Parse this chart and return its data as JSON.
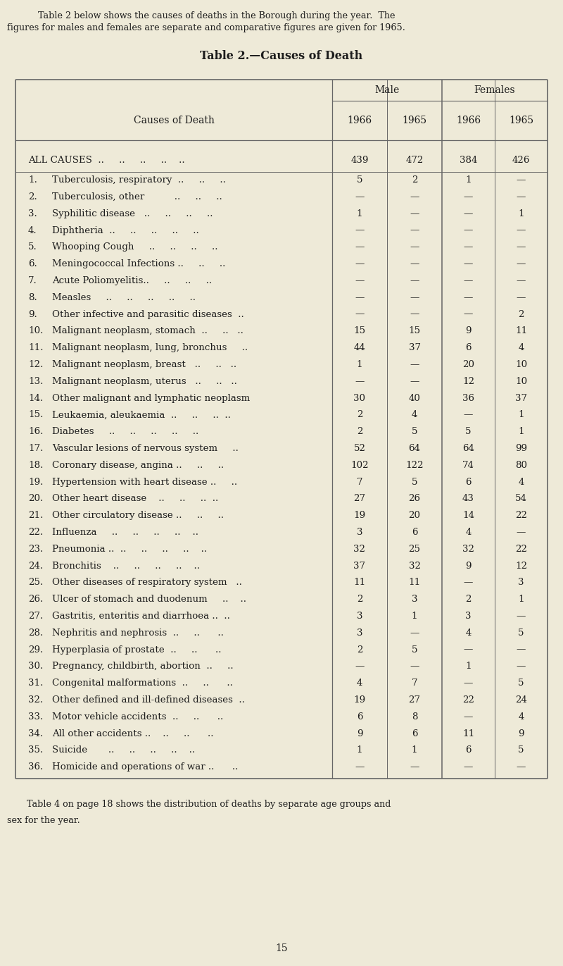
{
  "intro_line1": "    Table 2 below shows the causes of deaths in the Borough during the year.  The",
  "intro_line2": "figures for males and females are separate and comparative figures are given for 1965.",
  "table_title": "Table 2.—Causes of Death",
  "col_header_causes": "Causes of Death",
  "col_header_male": "Male",
  "col_header_females": "Females",
  "col_years": [
    "1966",
    "1965",
    "1966",
    "1965"
  ],
  "all_causes_label": "ALL CAUSES  ..     ..     ..     ..    ..",
  "all_causes_vals": [
    "439",
    "472",
    "384",
    "426"
  ],
  "rows": [
    {
      "num": "1.",
      "label": "Tuberculosis, respiratory  ..     ..     ..",
      "vals": [
        "5",
        "2",
        "1",
        "—"
      ]
    },
    {
      "num": "2.",
      "label": "Tuberculosis, other          ..     ..     ..",
      "vals": [
        "—",
        "—",
        "—",
        "—"
      ]
    },
    {
      "num": "3.",
      "label": "Syphilitic disease   ..     ..     ..     ..",
      "vals": [
        "1",
        "—",
        "—",
        "1"
      ]
    },
    {
      "num": "4.",
      "label": "Diphtheria  ..     ..     ..     ..     ..",
      "vals": [
        "—",
        "—",
        "—",
        "—"
      ]
    },
    {
      "num": "5.",
      "label": "Whooping Cough     ..     ..     ..     ..",
      "vals": [
        "—",
        "—",
        "—",
        "—"
      ]
    },
    {
      "num": "6.",
      "label": "Meningococcal Infections ..     ..     ..",
      "vals": [
        "—",
        "—",
        "—",
        "—"
      ]
    },
    {
      "num": "7.",
      "label": "Acute Poliomyelitis..     ..     ..     ..",
      "vals": [
        "—",
        "—",
        "—",
        "—"
      ]
    },
    {
      "num": "8.",
      "label": "Measles     ..     ..     ..     ..     ..",
      "vals": [
        "—",
        "—",
        "—",
        "—"
      ]
    },
    {
      "num": "9.",
      "label": "Other infective and parasitic diseases  ..",
      "vals": [
        "—",
        "—",
        "—",
        "2"
      ]
    },
    {
      "num": "10.",
      "label": "Malignant neoplasm, stomach  ..     ..   ..",
      "vals": [
        "15",
        "15",
        "9",
        "11"
      ]
    },
    {
      "num": "11.",
      "label": "Malignant neoplasm, lung, bronchus     ..",
      "vals": [
        "44",
        "37",
        "6",
        "4"
      ]
    },
    {
      "num": "12.",
      "label": "Malignant neoplasm, breast   ..     ..   ..",
      "vals": [
        "1",
        "—",
        "20",
        "10"
      ]
    },
    {
      "num": "13.",
      "label": "Malignant neoplasm, uterus   ..     ..   ..",
      "vals": [
        "—",
        "—",
        "12",
        "10"
      ]
    },
    {
      "num": "14.",
      "label": "Other malignant and lymphatic neoplasm",
      "vals": [
        "30",
        "40",
        "36",
        "37"
      ]
    },
    {
      "num": "15.",
      "label": "Leukaemia, aleukaemia  ..     ..     ..  ..",
      "vals": [
        "2",
        "4",
        "—",
        "1"
      ]
    },
    {
      "num": "16.",
      "label": "Diabetes     ..     ..     ..     ..     ..",
      "vals": [
        "2",
        "5",
        "5",
        "1"
      ]
    },
    {
      "num": "17.",
      "label": "Vascular lesions of nervous system     ..",
      "vals": [
        "52",
        "64",
        "64",
        "99"
      ]
    },
    {
      "num": "18.",
      "label": "Coronary disease, angina ..     ..     ..",
      "vals": [
        "102",
        "122",
        "74",
        "80"
      ]
    },
    {
      "num": "19.",
      "label": "Hypertension with heart disease ..     ..",
      "vals": [
        "7",
        "5",
        "6",
        "4"
      ]
    },
    {
      "num": "20.",
      "label": "Other heart disease    ..     ..     ..  ..",
      "vals": [
        "27",
        "26",
        "43",
        "54"
      ]
    },
    {
      "num": "21.",
      "label": "Other circulatory disease ..     ..     ..",
      "vals": [
        "19",
        "20",
        "14",
        "22"
      ]
    },
    {
      "num": "22.",
      "label": "Influenza     ..     ..     ..     ..    ..",
      "vals": [
        "3",
        "6",
        "4",
        "—"
      ]
    },
    {
      "num": "23.",
      "label": "Pneumonia ..  ..     ..     ..     ..    ..",
      "vals": [
        "32",
        "25",
        "32",
        "22"
      ]
    },
    {
      "num": "24.",
      "label": "Bronchitis    ..     ..     ..     ..    ..",
      "vals": [
        "37",
        "32",
        "9",
        "12"
      ]
    },
    {
      "num": "25.",
      "label": "Other diseases of respiratory system   ..",
      "vals": [
        "11",
        "11",
        "—",
        "3"
      ]
    },
    {
      "num": "26.",
      "label": "Ulcer of stomach and duodenum     ..    ..",
      "vals": [
        "2",
        "3",
        "2",
        "1"
      ]
    },
    {
      "num": "27.",
      "label": "Gastritis, enteritis and diarrhoea ..  ..",
      "vals": [
        "3",
        "1",
        "3",
        "—"
      ]
    },
    {
      "num": "28.",
      "label": "Nephritis and nephrosis  ..     ..      ..",
      "vals": [
        "3",
        "—",
        "4",
        "5"
      ]
    },
    {
      "num": "29.",
      "label": "Hyperplasia of prostate  ..     ..      ..",
      "vals": [
        "2",
        "5",
        "—",
        "—"
      ]
    },
    {
      "num": "30.",
      "label": "Pregnancy, childbirth, abortion  ..     ..",
      "vals": [
        "—",
        "—",
        "1",
        "—"
      ]
    },
    {
      "num": "31.",
      "label": "Congenital malformations  ..     ..      ..",
      "vals": [
        "4",
        "7",
        "—",
        "5"
      ]
    },
    {
      "num": "32.",
      "label": "Other defined and ill-defined diseases  ..",
      "vals": [
        "19",
        "27",
        "22",
        "24"
      ]
    },
    {
      "num": "33.",
      "label": "Motor vehicle accidents  ..     ..      ..",
      "vals": [
        "6",
        "8",
        "—",
        "4"
      ]
    },
    {
      "num": "34.",
      "label": "All other accidents ..    ..     ..      ..",
      "vals": [
        "9",
        "6",
        "11",
        "9"
      ]
    },
    {
      "num": "35.",
      "label": "Suicide       ..     ..     ..     ..    ..",
      "vals": [
        "1",
        "1",
        "6",
        "5"
      ]
    },
    {
      "num": "36.",
      "label": "Homicide and operations of war ..      ..",
      "vals": [
        "—",
        "—",
        "—",
        "—"
      ]
    }
  ],
  "footer_line1": "    Table 4 on page 18 shows the distribution of deaths by separate age groups and",
  "footer_line2": "sex for the year.",
  "page_number": "15",
  "bg_color": "#eeead8",
  "text_color": "#1c1c1c",
  "line_color": "#666666"
}
